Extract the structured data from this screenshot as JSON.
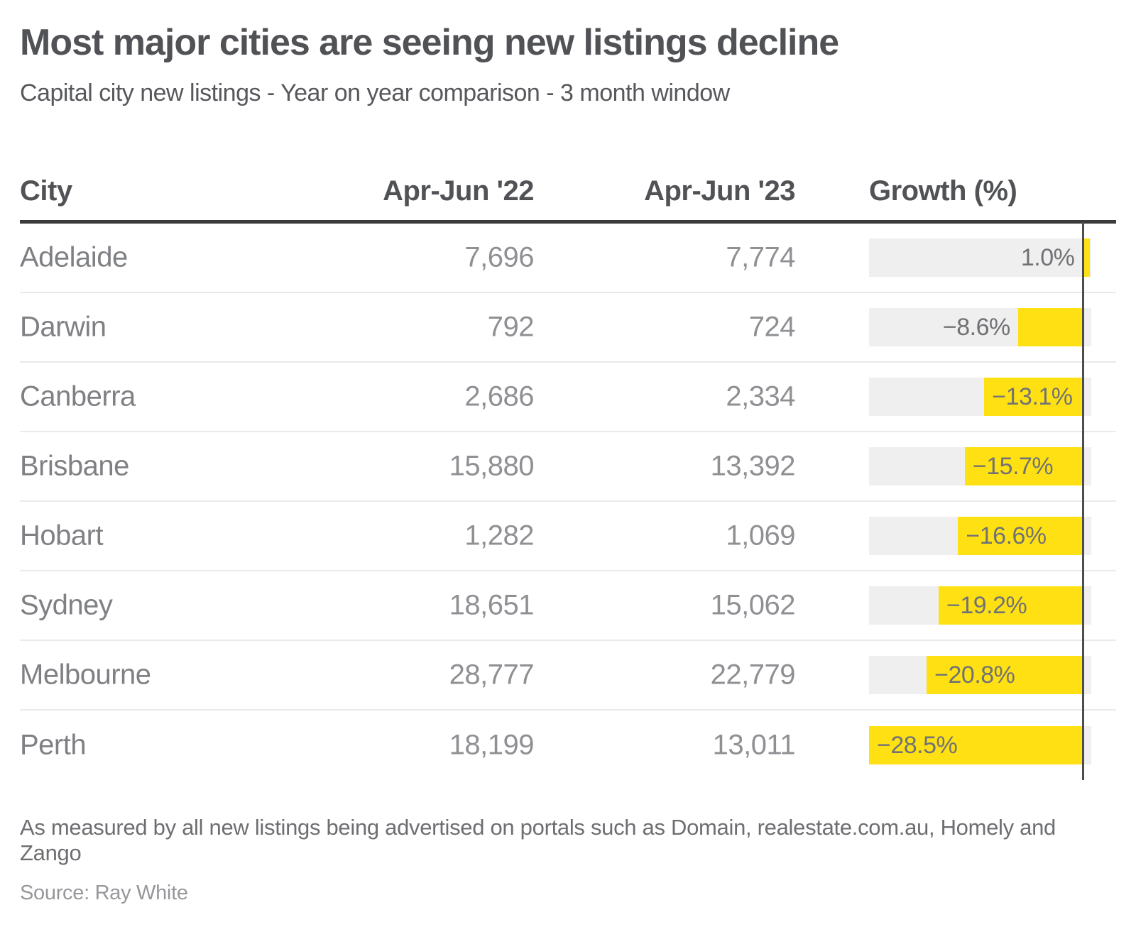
{
  "title": "Most major cities are seeing new listings decline",
  "subtitle": "Capital city new listings - Year on year comparison - 3 month window",
  "table": {
    "columns": [
      "City",
      "Apr-Jun '22",
      "Apr-Jun '23",
      "Growth (%)"
    ]
  },
  "chart_data": {
    "type": "bar",
    "orientation": "horizontal",
    "title": "Most major cities are seeing new listings decline",
    "subtitle": "Capital city new listings - Year on year comparison - 3 month window",
    "categories": [
      "Adelaide",
      "Darwin",
      "Canberra",
      "Brisbane",
      "Hobart",
      "Sydney",
      "Melbourne",
      "Perth"
    ],
    "series": [
      {
        "name": "Apr-Jun '22",
        "values": [
          7696,
          792,
          2686,
          15880,
          1282,
          18651,
          28777,
          18199
        ]
      },
      {
        "name": "Apr-Jun '23",
        "values": [
          7774,
          724,
          2334,
          13392,
          1069,
          15062,
          22779,
          13011
        ]
      },
      {
        "name": "Growth (%)",
        "values": [
          1.0,
          -8.6,
          -13.1,
          -15.7,
          -16.6,
          -19.2,
          -20.8,
          -28.5
        ]
      }
    ],
    "values_display": {
      "apr_jun_22": [
        "7,696",
        "792",
        "2,686",
        "15,880",
        "1,282",
        "18,651",
        "28,777",
        "18,199"
      ],
      "apr_jun_23": [
        "7,774",
        "724",
        "2,334",
        "13,392",
        "1,069",
        "15,062",
        "22,779",
        "13,011"
      ]
    },
    "growth_display": [
      "1.0%",
      "−8.6%",
      "−13.1%",
      "−15.7%",
      "−16.6%",
      "−19.2%",
      "−20.8%",
      "−28.5%"
    ],
    "axis": {
      "min": -28.5,
      "max": 1.2,
      "zero_line": true,
      "grid": false
    },
    "legend": "none",
    "colors": {
      "bar": "#ffe113",
      "track": "#efefef",
      "zero_line": "#4c4d4f"
    }
  },
  "footnote": "As measured by all new listings being advertised on portals such as Domain, realestate.com.au, Homely and Zango",
  "source": "Source: Ray White"
}
